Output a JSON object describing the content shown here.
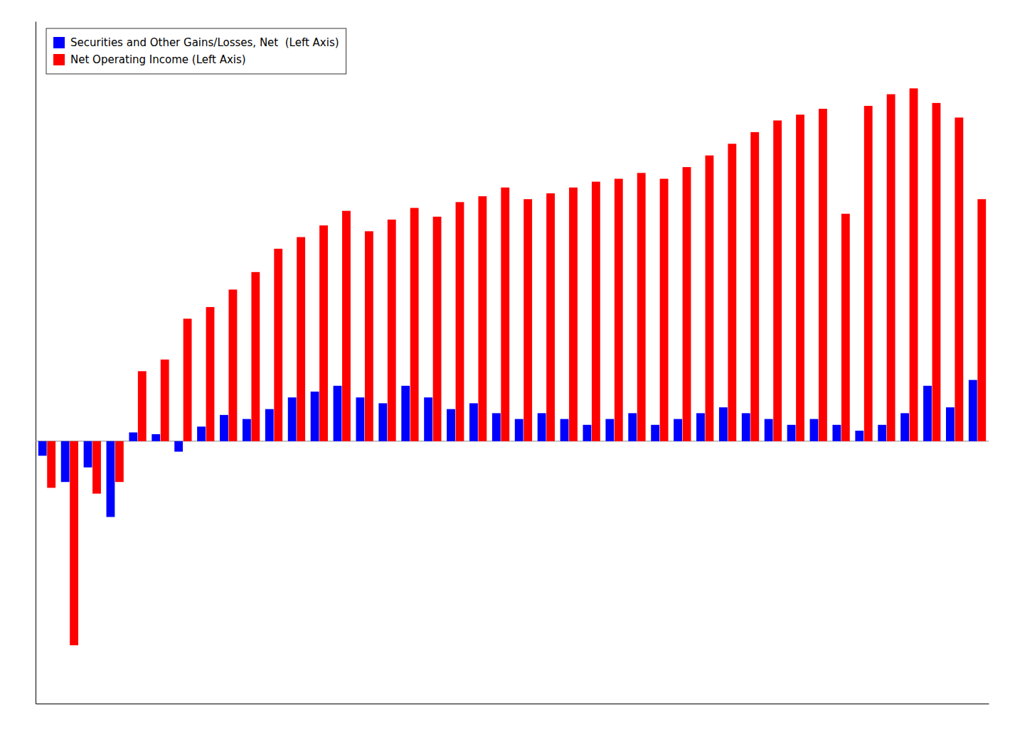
{
  "chart_data": {
    "type": "bar",
    "categories": [
      null,
      null,
      null,
      null,
      null,
      null,
      null,
      null,
      null,
      null,
      null,
      null,
      null,
      null,
      null,
      null,
      null,
      null,
      null,
      null,
      null,
      null,
      null,
      null,
      null,
      null,
      null,
      null,
      null,
      null,
      null,
      null,
      null,
      null,
      null,
      null,
      null,
      null,
      null,
      null,
      null,
      null
    ],
    "series": [
      {
        "name": "Securities and Other Gains/Losses, Net  (Left Axis)",
        "color": "#0000ff",
        "values": [
          -25,
          -70,
          -45,
          -130,
          15,
          12,
          -18,
          25,
          45,
          38,
          55,
          75,
          85,
          95,
          75,
          65,
          95,
          75,
          55,
          65,
          48,
          38,
          48,
          38,
          28,
          38,
          48,
          28,
          38,
          48,
          58,
          48,
          38,
          28,
          38,
          28,
          18,
          28,
          48,
          95,
          58,
          105
        ]
      },
      {
        "name": "Net Operating Income (Left Axis)",
        "color": "#ff0000",
        "values": [
          -80,
          -350,
          -90,
          -70,
          120,
          140,
          210,
          230,
          260,
          290,
          330,
          350,
          370,
          395,
          360,
          380,
          400,
          385,
          410,
          420,
          435,
          415,
          425,
          435,
          445,
          450,
          460,
          450,
          470,
          490,
          510,
          530,
          550,
          560,
          570,
          390,
          575,
          595,
          605,
          580,
          555,
          415
        ]
      }
    ],
    "ylim": [
      -450,
      720
    ],
    "tick_labels": false,
    "legend": "upper left"
  }
}
